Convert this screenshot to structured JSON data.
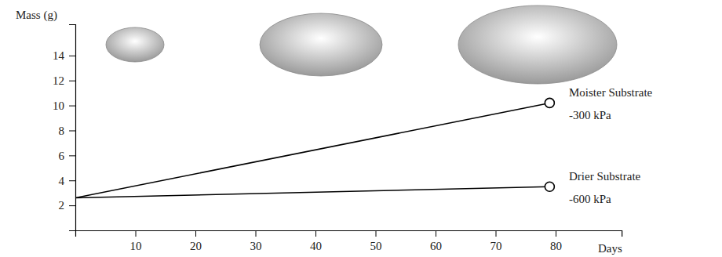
{
  "chart_data": {
    "type": "line",
    "y_label": "Mass (g)",
    "x_label": "Days",
    "x": [
      0,
      79
    ],
    "series": [
      {
        "name": "Moister Substrate",
        "color": "#000000",
        "marker": "circle",
        "values": [
          2.6,
          10.2
        ]
      },
      {
        "name": "Drier Substrate",
        "color": "#000000",
        "marker": "circle",
        "values": [
          2.6,
          3.5
        ]
      }
    ],
    "annotations": [
      "-300 kPa",
      "-600 kPa"
    ],
    "xlim": [
      0,
      91
    ],
    "ylim": [
      0,
      16.5
    ],
    "xticks": [
      10,
      20,
      30,
      40,
      50,
      60,
      70,
      80
    ],
    "yticks": [
      2,
      4,
      6,
      8,
      10,
      12,
      14
    ],
    "grid": false
  }
}
